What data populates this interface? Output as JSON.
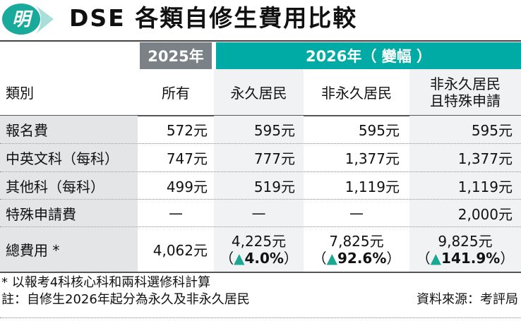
{
  "logo": {
    "text": "明",
    "color": "#1aaa9c"
  },
  "title": "DSE 各類自修生費用比較",
  "header": {
    "year2025": "2025年",
    "year2026": "2026年（ 變幅 ）",
    "category": "類別",
    "cols": [
      "所有",
      "永久居民",
      "非永久居民",
      "非永久居民\n且特殊申請"
    ],
    "col4_line1": "非永久居民",
    "col4_line2": "且特殊申請"
  },
  "rows": [
    {
      "label": "報名費",
      "values": [
        "572元",
        "595元",
        "595元",
        "595元"
      ]
    },
    {
      "label": "中英文科（每科）",
      "values": [
        "747元",
        "777元",
        "1,377元",
        "1,377元"
      ]
    },
    {
      "label": "其他科（每科）",
      "values": [
        "499元",
        "519元",
        "1,119元",
        "1,119元"
      ]
    },
    {
      "label": "特殊申請費",
      "values": [
        "—",
        "—",
        "—",
        "2,000元"
      ]
    }
  ],
  "total": {
    "label": "總費用 *",
    "v2025": "4,062元",
    "values": [
      "4,225元",
      "7,825元",
      "9,825元"
    ],
    "changes": [
      "4.0%",
      "92.6%",
      "141.9%"
    ],
    "arrow": "▲",
    "open": "（",
    "close": "）"
  },
  "footnotes": {
    "note1": "* 以報考4科核心科和兩科選修科計算",
    "note2": "註：自修生2026年起分為永久及非永久居民",
    "source": "資料來源：考評局"
  },
  "colors": {
    "teal": "#00aaa5",
    "gray": "#7a8288"
  }
}
